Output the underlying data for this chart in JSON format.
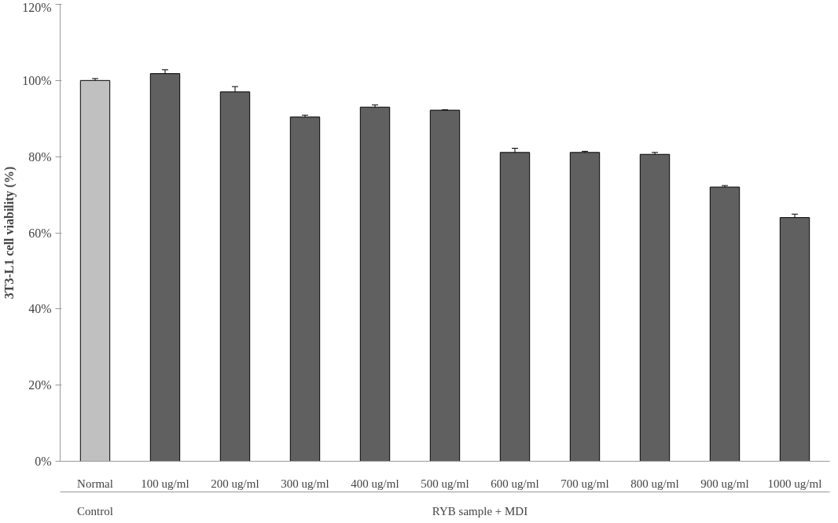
{
  "chart_data": {
    "type": "bar",
    "ylabel": "3T3-L1 cell viability (%)",
    "categories": [
      "Normal",
      "100 ug/ml",
      "200 ug/ml",
      "300 ug/ml",
      "400 ug/ml",
      "500 ug/ml",
      "600 ug/ml",
      "700 ug/ml",
      "800 ug/ml",
      "900 ug/ml",
      "1000 ug/ml"
    ],
    "values": [
      100,
      101.8,
      97.0,
      90.4,
      93.0,
      92.2,
      81.1,
      81.1,
      80.6,
      72.0,
      64.0
    ],
    "errors": [
      0.5,
      1.0,
      1.4,
      0.5,
      0.6,
      0.1,
      1.1,
      0.3,
      0.5,
      0.4,
      0.9
    ],
    "colors": [
      "#c0c0c0",
      "#606060",
      "#606060",
      "#606060",
      "#606060",
      "#606060",
      "#606060",
      "#606060",
      "#606060",
      "#606060",
      "#606060"
    ],
    "ylim": [
      0,
      120
    ],
    "yticks": [
      {
        "value": 0,
        "label": "0%"
      },
      {
        "value": 20,
        "label": "20%"
      },
      {
        "value": 40,
        "label": "40%"
      },
      {
        "value": 60,
        "label": "60%"
      },
      {
        "value": 80,
        "label": "80%"
      },
      {
        "value": 100,
        "label": "100%"
      },
      {
        "value": 120,
        "label": "120%"
      }
    ],
    "annotations": [
      "Control",
      "RYB sample + MDI"
    ],
    "grid": false
  }
}
